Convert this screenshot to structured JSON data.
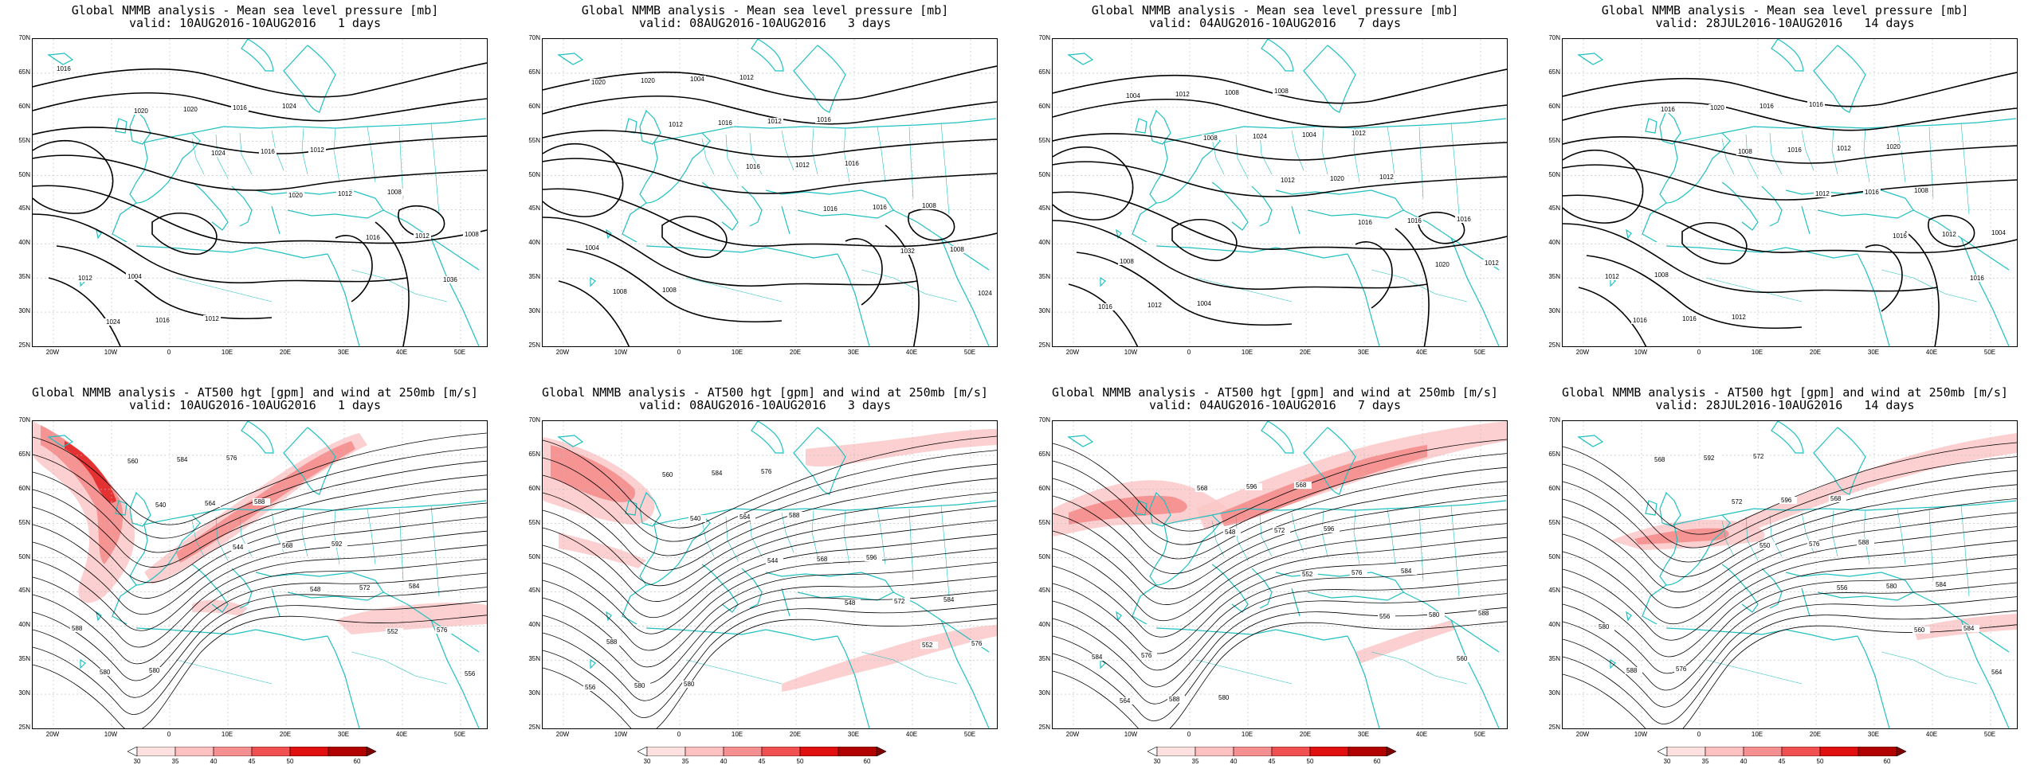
{
  "grid": {
    "lat_labels": [
      "70N",
      "65N",
      "60N",
      "55N",
      "50N",
      "45N",
      "40N",
      "35N",
      "30N",
      "25N"
    ],
    "lon_labels": [
      "20W",
      "10W",
      "0",
      "10E",
      "20E",
      "30E",
      "40E",
      "50E"
    ]
  },
  "colors": {
    "coast": "#20c0c0",
    "contour": "#000000",
    "jet_light": "#fbc8c8",
    "jet_mid": "#f58a8a",
    "jet_dark": "#e02020",
    "grid": "#bbbbbb"
  },
  "colorbar": {
    "labels": [
      "30",
      "35",
      "40",
      "45",
      "50",
      "60"
    ]
  },
  "panels": [
    {
      "id": "mslp-1d",
      "type": "mslp",
      "title": "Global NMMB analysis - Mean sea level pressure [mb]",
      "subtitle": "valid: 10AUG2016-10AUG2016   1 days",
      "labels": [
        "1016",
        "1020",
        "1024",
        "1020",
        "1016",
        "1036",
        "1024",
        "1020",
        "1016",
        "1012",
        "1012",
        "1012",
        "1016",
        "1016",
        "1012",
        "1008",
        "1008",
        "1004",
        "1012",
        "1024"
      ]
    },
    {
      "id": "mslp-3d",
      "type": "mslp",
      "title": "Global NMMB analysis - Mean sea level pressure [mb]",
      "subtitle": "valid: 08AUG2016-10AUG2016   3 days",
      "labels": [
        "1020",
        "1012",
        "1016",
        "1016",
        "1032",
        "1024",
        "1020",
        "1016",
        "1012",
        "1016",
        "1008",
        "1008",
        "1004",
        "1012",
        "1016",
        "1008",
        "1004",
        "1008",
        "1012",
        "1016"
      ]
    },
    {
      "id": "mslp-7d",
      "type": "mslp",
      "title": "Global NMMB analysis - Mean sea level pressure [mb]",
      "subtitle": "valid: 04AUG2016-10AUG2016   7 days",
      "labels": [
        "1004",
        "1008",
        "1012",
        "1016",
        "1020",
        "1016",
        "1012",
        "1024",
        "1020",
        "1016",
        "1012",
        "1012",
        "1008",
        "1004",
        "1012",
        "1016",
        "1008",
        "1004",
        "1008",
        "1012"
      ]
    },
    {
      "id": "mslp-14d",
      "type": "mslp",
      "title": "Global NMMB analysis - Mean sea level pressure [mb]",
      "subtitle": "valid: 28JUL2016-10AUG2016   14 days",
      "labels": [
        "1016",
        "1008",
        "1012",
        "1016",
        "1016",
        "1016",
        "1020",
        "1016",
        "1016",
        "1012",
        "1012",
        "1016",
        "1016",
        "1012",
        "1008",
        "1004",
        "1008",
        "1012",
        "1016",
        "1020"
      ]
    },
    {
      "id": "z500-1d",
      "type": "z500",
      "title": "Global NMMB analysis - AT500 hgt [gpm] and wind at 250mb [m/s]",
      "subtitle": "valid: 10AUG2016-10AUG2016   1 days",
      "labels": [
        "540",
        "544",
        "548",
        "552",
        "556",
        "560",
        "564",
        "568",
        "572",
        "576",
        "580",
        "584",
        "588",
        "592",
        "584",
        "588",
        "580",
        "576"
      ]
    },
    {
      "id": "z500-3d",
      "type": "z500",
      "title": "Global NMMB analysis - AT500 hgt [gpm] and wind at 250mb [m/s]",
      "subtitle": "valid: 08AUG2016-10AUG2016   3 days",
      "labels": [
        "540",
        "544",
        "548",
        "552",
        "556",
        "560",
        "564",
        "568",
        "572",
        "576",
        "580",
        "584",
        "588",
        "596",
        "584",
        "588",
        "580",
        "576"
      ]
    },
    {
      "id": "z500-7d",
      "type": "z500",
      "title": "Global NMMB analysis - AT500 hgt [gpm] and wind at 250mb [m/s]",
      "subtitle": "valid: 04AUG2016-10AUG2016   7 days",
      "labels": [
        "548",
        "552",
        "556",
        "560",
        "564",
        "568",
        "572",
        "576",
        "580",
        "584",
        "588",
        "596",
        "596",
        "584",
        "588",
        "576",
        "580",
        "568"
      ]
    },
    {
      "id": "z500-14d",
      "type": "z500",
      "title": "Global NMMB analysis - AT500 hgt [gpm] and wind at 250mb [m/s]",
      "subtitle": "valid: 28JUL2016-10AUG2016   14 days",
      "labels": [
        "550",
        "556",
        "560",
        "564",
        "568",
        "572",
        "576",
        "580",
        "584",
        "588",
        "592",
        "596",
        "588",
        "584",
        "580",
        "576",
        "572",
        "568"
      ]
    }
  ]
}
